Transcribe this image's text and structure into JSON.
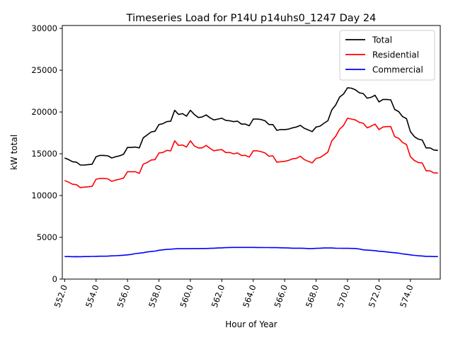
{
  "chart_data": {
    "type": "line",
    "title": "Timeseries Load for P14U p14uhs0_1247  Day 24",
    "xlabel": "Hour of Year",
    "ylabel": "kW total",
    "xlim": [
      551.85,
      575.9
    ],
    "ylim": [
      0,
      30350
    ],
    "xticks": [
      552,
      554,
      556,
      558,
      560,
      562,
      564,
      566,
      568,
      570,
      572,
      574
    ],
    "xtick_labels": [
      "552.0",
      "554.0",
      "556.0",
      "558.0",
      "560.0",
      "562.0",
      "564.0",
      "566.0",
      "568.0",
      "570.0",
      "572.0",
      "574.0"
    ],
    "yticks": [
      0,
      5000,
      10000,
      15000,
      20000,
      25000,
      30000
    ],
    "ytick_labels": [
      "0",
      "5000",
      "10000",
      "15000",
      "20000",
      "25000",
      "30000"
    ],
    "legend_position": "top-right",
    "x": [
      552.0,
      552.25,
      552.5,
      552.75,
      553.0,
      553.25,
      553.5,
      553.75,
      554.0,
      554.25,
      554.5,
      554.75,
      555.0,
      555.25,
      555.5,
      555.75,
      556.0,
      556.25,
      556.5,
      556.75,
      557.0,
      557.25,
      557.5,
      557.75,
      558.0,
      558.25,
      558.5,
      558.75,
      559.0,
      559.25,
      559.5,
      559.75,
      560.0,
      560.25,
      560.5,
      560.75,
      561.0,
      561.25,
      561.5,
      561.75,
      562.0,
      562.25,
      562.5,
      562.75,
      563.0,
      563.25,
      563.5,
      563.75,
      564.0,
      564.25,
      564.5,
      564.75,
      565.0,
      565.25,
      565.5,
      565.75,
      566.0,
      566.25,
      566.5,
      566.75,
      567.0,
      567.25,
      567.5,
      567.75,
      568.0,
      568.25,
      568.5,
      568.75,
      569.0,
      569.25,
      569.5,
      569.75,
      570.0,
      570.25,
      570.5,
      570.75,
      571.0,
      571.25,
      571.5,
      571.75,
      572.0,
      572.25,
      572.5,
      572.75,
      573.0,
      573.25,
      573.5,
      573.75,
      574.0,
      574.25,
      574.5,
      574.75,
      575.0,
      575.25,
      575.5,
      575.75
    ],
    "series": [
      {
        "name": "Total",
        "color": "#000000",
        "values": [
          14500,
          14300,
          14050,
          14000,
          13650,
          13650,
          13700,
          13750,
          14650,
          14800,
          14800,
          14750,
          14500,
          14650,
          14750,
          14950,
          15750,
          15750,
          15800,
          15700,
          16900,
          17250,
          17600,
          17700,
          18500,
          18600,
          18850,
          18900,
          20200,
          19700,
          19800,
          19500,
          20200,
          19700,
          19350,
          19400,
          19650,
          19300,
          19050,
          19150,
          19250,
          19000,
          18950,
          18850,
          18900,
          18550,
          18550,
          18350,
          19150,
          19150,
          19100,
          18950,
          18500,
          18500,
          17800,
          17900,
          17900,
          17950,
          18100,
          18200,
          18400,
          18050,
          17850,
          17650,
          18200,
          18300,
          18650,
          18950,
          20250,
          20850,
          21800,
          22150,
          22900,
          22850,
          22650,
          22300,
          22200,
          21650,
          21750,
          22000,
          21200,
          21500,
          21500,
          21450,
          20300,
          20050,
          19450,
          19200,
          17650,
          17050,
          16750,
          16650,
          15700,
          15700,
          15450,
          15400
        ]
      },
      {
        "name": "Residential",
        "color": "#ff0000",
        "values": [
          11800,
          11600,
          11350,
          11300,
          10950,
          11000,
          11050,
          11100,
          11950,
          12050,
          12050,
          12000,
          11700,
          11850,
          11950,
          12100,
          12850,
          12850,
          12850,
          12650,
          13750,
          13950,
          14250,
          14300,
          15100,
          15150,
          15400,
          15350,
          16550,
          16000,
          16050,
          15800,
          16550,
          15950,
          15700,
          15700,
          16000,
          15650,
          15350,
          15450,
          15500,
          15150,
          15150,
          15000,
          15100,
          14800,
          14800,
          14600,
          15350,
          15350,
          15250,
          15100,
          14700,
          14750,
          14000,
          14050,
          14100,
          14200,
          14400,
          14450,
          14700,
          14300,
          14100,
          13900,
          14450,
          14550,
          14850,
          15200,
          16550,
          17100,
          17950,
          18400,
          19250,
          19150,
          19050,
          18750,
          18650,
          18100,
          18300,
          18550,
          17900,
          18200,
          18250,
          18250,
          17050,
          16850,
          16350,
          16100,
          14650,
          14200,
          13950,
          13900,
          12950,
          12950,
          12700,
          12700
        ]
      },
      {
        "name": "Commercial",
        "color": "#0000ff",
        "values": [
          2700,
          2700,
          2680,
          2690,
          2680,
          2700,
          2700,
          2710,
          2720,
          2740,
          2740,
          2750,
          2780,
          2800,
          2820,
          2860,
          2900,
          2950,
          3050,
          3100,
          3150,
          3250,
          3300,
          3350,
          3450,
          3500,
          3550,
          3580,
          3620,
          3640,
          3640,
          3640,
          3650,
          3650,
          3650,
          3660,
          3660,
          3680,
          3700,
          3720,
          3740,
          3760,
          3780,
          3790,
          3790,
          3790,
          3790,
          3790,
          3790,
          3780,
          3780,
          3770,
          3770,
          3760,
          3760,
          3750,
          3740,
          3720,
          3700,
          3700,
          3700,
          3680,
          3650,
          3650,
          3680,
          3700,
          3720,
          3720,
          3720,
          3700,
          3690,
          3680,
          3680,
          3670,
          3660,
          3600,
          3500,
          3470,
          3440,
          3400,
          3330,
          3300,
          3250,
          3200,
          3150,
          3100,
          3020,
          2960,
          2900,
          2840,
          2790,
          2760,
          2720,
          2720,
          2700,
          2700
        ]
      }
    ]
  }
}
